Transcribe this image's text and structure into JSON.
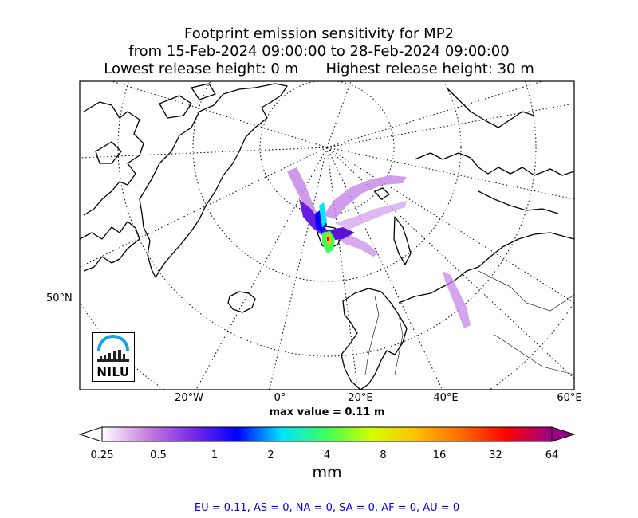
{
  "title": {
    "line1": "Footprint emission sensitivity for MP2",
    "line2": "from 15-Feb-2024 09:00:00 to 28-Feb-2024 09:00:00",
    "line3a": "Lowest release height: 0 m",
    "line3b": "Highest release height: 30 m"
  },
  "map": {
    "projection": "polar stereographic",
    "lon_labels": [
      "20°W",
      "0°",
      "20°E",
      "40°E",
      "60°E"
    ],
    "lat_labels": [
      "50°N"
    ],
    "plume_colors": [
      "#c586e8",
      "#8a2be2",
      "#0000ff",
      "#00e5ff",
      "#7fff00",
      "#ffa500",
      "#ff0000"
    ]
  },
  "max_value": "max value = 0.11 m",
  "colorbar": {
    "ticks": [
      "0.25",
      "0.5",
      "1",
      "2",
      "4",
      "8",
      "16",
      "32",
      "64"
    ],
    "colors": [
      "#ffffff",
      "#c97fe0",
      "#7b2be8",
      "#0000ff",
      "#00e5ff",
      "#3fff5a",
      "#d4ff00",
      "#ffbf00",
      "#ff6a00",
      "#ff0000",
      "#9b008b"
    ],
    "unit": "mm"
  },
  "footer": "EU = 0.11,  AS = 0,  NA = 0,  SA = 0,  AF = 0,  AU = 0",
  "logo": {
    "text": "NILU"
  }
}
